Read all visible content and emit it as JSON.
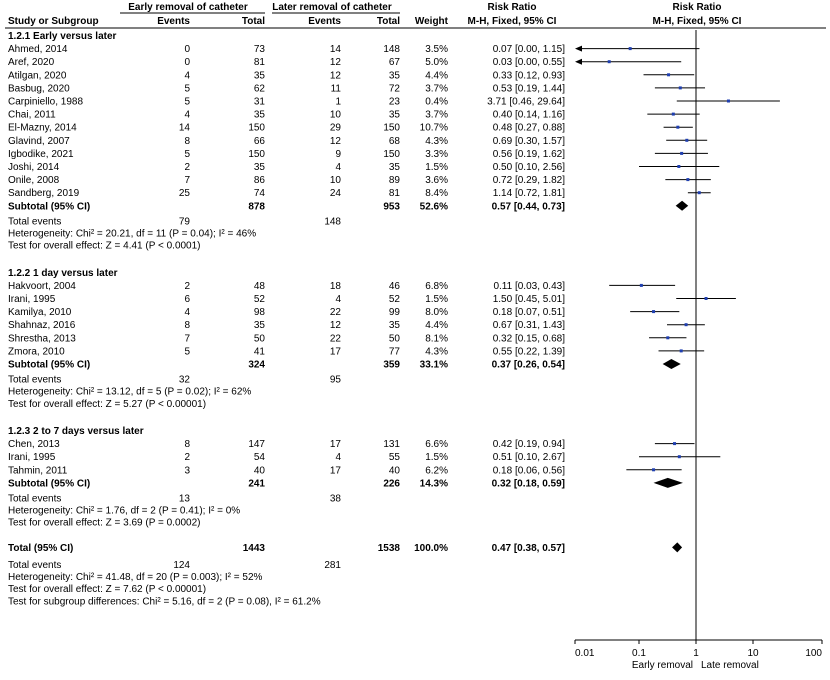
{
  "header": {
    "early_group": "Early removal of catheter",
    "late_group": "Later removal of catheter",
    "risk_ratio": "Risk Ratio",
    "risk_ratio_plot": "Risk Ratio",
    "study_col": "Study or Subgroup",
    "events_early": "Events",
    "total_early": "Total",
    "events_late": "Events",
    "total_late": "Total",
    "weight": "Weight",
    "method": "M-H, Fixed, 95% CI",
    "method_plot": "M-H, Fixed, 95% CI"
  },
  "chart_data": {
    "type": "forest",
    "scale": "log",
    "xlim": [
      0.01,
      100
    ],
    "ticks": [
      0.01,
      0.1,
      1,
      10,
      100
    ],
    "tick_labels": [
      "0.01",
      "0.1",
      "1",
      "10",
      "100"
    ],
    "axis_labels": {
      "left": "Early removal",
      "right": "Late removal"
    },
    "subgroups": [
      {
        "title": "1.2.1 Early versus later",
        "studies": [
          {
            "name": "Ahmed, 2014",
            "ee": "0",
            "et": "73",
            "le": "14",
            "lt": "148",
            "w": "3.5%",
            "ci_text": "0.07 [0.00, 1.15]",
            "rr": 0.07,
            "lo": 0.004,
            "hi": 1.15,
            "arrow_left": true
          },
          {
            "name": "Aref, 2020",
            "ee": "0",
            "et": "81",
            "le": "12",
            "lt": "67",
            "w": "5.0%",
            "ci_text": "0.03 [0.00, 0.55]",
            "rr": 0.03,
            "lo": 0.002,
            "hi": 0.55,
            "arrow_left": true
          },
          {
            "name": "Atilgan, 2020",
            "ee": "4",
            "et": "35",
            "le": "12",
            "lt": "35",
            "w": "4.4%",
            "ci_text": "0.33 [0.12, 0.93]",
            "rr": 0.33,
            "lo": 0.12,
            "hi": 0.93
          },
          {
            "name": "Basbug, 2020",
            "ee": "5",
            "et": "62",
            "le": "11",
            "lt": "72",
            "w": "3.7%",
            "ci_text": "0.53 [0.19, 1.44]",
            "rr": 0.53,
            "lo": 0.19,
            "hi": 1.44
          },
          {
            "name": "Carpiniello, 1988",
            "ee": "5",
            "et": "31",
            "le": "1",
            "lt": "23",
            "w": "0.4%",
            "ci_text": "3.71 [0.46, 29.64]",
            "rr": 3.71,
            "lo": 0.46,
            "hi": 29.64
          },
          {
            "name": "Chai, 2011",
            "ee": "4",
            "et": "35",
            "le": "10",
            "lt": "35",
            "w": "3.7%",
            "ci_text": "0.40 [0.14, 1.16]",
            "rr": 0.4,
            "lo": 0.14,
            "hi": 1.16
          },
          {
            "name": "El-Mazny, 2014",
            "ee": "14",
            "et": "150",
            "le": "29",
            "lt": "150",
            "w": "10.7%",
            "ci_text": "0.48 [0.27, 0.88]",
            "rr": 0.48,
            "lo": 0.27,
            "hi": 0.88
          },
          {
            "name": "Glavind, 2007",
            "ee": "8",
            "et": "66",
            "le": "12",
            "lt": "68",
            "w": "4.3%",
            "ci_text": "0.69 [0.30, 1.57]",
            "rr": 0.69,
            "lo": 0.3,
            "hi": 1.57
          },
          {
            "name": "Igbodike, 2021",
            "ee": "5",
            "et": "150",
            "le": "9",
            "lt": "150",
            "w": "3.3%",
            "ci_text": "0.56 [0.19, 1.62]",
            "rr": 0.56,
            "lo": 0.19,
            "hi": 1.62
          },
          {
            "name": "Joshi, 2014",
            "ee": "2",
            "et": "35",
            "le": "4",
            "lt": "35",
            "w": "1.5%",
            "ci_text": "0.50 [0.10, 2.56]",
            "rr": 0.5,
            "lo": 0.1,
            "hi": 2.56
          },
          {
            "name": "Onile, 2008",
            "ee": "7",
            "et": "86",
            "le": "10",
            "lt": "89",
            "w": "3.6%",
            "ci_text": "0.72 [0.29, 1.82]",
            "rr": 0.72,
            "lo": 0.29,
            "hi": 1.82
          },
          {
            "name": "Sandberg, 2019",
            "ee": "25",
            "et": "74",
            "le": "24",
            "lt": "81",
            "w": "8.4%",
            "ci_text": "1.14 [0.72, 1.81]",
            "rr": 1.14,
            "lo": 0.72,
            "hi": 1.81
          }
        ],
        "subtotal": {
          "label": "Subtotal (95% CI)",
          "et": "878",
          "lt": "953",
          "w": "52.6%",
          "ci_text": "0.57 [0.44, 0.73]",
          "rr": 0.57,
          "lo": 0.44,
          "hi": 0.73
        },
        "events_label": "Total events",
        "events_early": "79",
        "events_late": "148",
        "heterogeneity": "Heterogeneity: Chi² = 20.21, df = 11 (P = 0.04); I² = 46%",
        "overall": "Test for overall effect: Z = 4.41 (P < 0.0001)"
      },
      {
        "title": "1.2.2 1 day versus later",
        "studies": [
          {
            "name": "Hakvoort, 2004",
            "ee": "2",
            "et": "48",
            "le": "18",
            "lt": "46",
            "w": "6.8%",
            "ci_text": "0.11 [0.03, 0.43]",
            "rr": 0.11,
            "lo": 0.03,
            "hi": 0.43
          },
          {
            "name": "Irani, 1995",
            "ee": "6",
            "et": "52",
            "le": "4",
            "lt": "52",
            "w": "1.5%",
            "ci_text": "1.50 [0.45, 5.01]",
            "rr": 1.5,
            "lo": 0.45,
            "hi": 5.01
          },
          {
            "name": "Kamilya, 2010",
            "ee": "4",
            "et": "98",
            "le": "22",
            "lt": "99",
            "w": "8.0%",
            "ci_text": "0.18 [0.07, 0.51]",
            "rr": 0.18,
            "lo": 0.07,
            "hi": 0.51
          },
          {
            "name": "Shahnaz, 2016",
            "ee": "8",
            "et": "35",
            "le": "12",
            "lt": "35",
            "w": "4.4%",
            "ci_text": "0.67 [0.31, 1.43]",
            "rr": 0.67,
            "lo": 0.31,
            "hi": 1.43
          },
          {
            "name": "Shrestha, 2013",
            "ee": "7",
            "et": "50",
            "le": "22",
            "lt": "50",
            "w": "8.1%",
            "ci_text": "0.32 [0.15, 0.68]",
            "rr": 0.32,
            "lo": 0.15,
            "hi": 0.68
          },
          {
            "name": "Zmora, 2010",
            "ee": "5",
            "et": "41",
            "le": "17",
            "lt": "77",
            "w": "4.3%",
            "ci_text": "0.55 [0.22, 1.39]",
            "rr": 0.55,
            "lo": 0.22,
            "hi": 1.39
          }
        ],
        "subtotal": {
          "label": "Subtotal (95% CI)",
          "et": "324",
          "lt": "359",
          "w": "33.1%",
          "ci_text": "0.37 [0.26, 0.54]",
          "rr": 0.37,
          "lo": 0.26,
          "hi": 0.54
        },
        "events_label": "Total events",
        "events_early": "32",
        "events_late": "95",
        "heterogeneity": "Heterogeneity: Chi² = 13.12, df = 5 (P = 0.02); I² = 62%",
        "overall": "Test for overall effect: Z = 5.27 (P < 0.00001)"
      },
      {
        "title": "1.2.3 2 to 7 days versus later",
        "studies": [
          {
            "name": "Chen, 2013",
            "ee": "8",
            "et": "147",
            "le": "17",
            "lt": "131",
            "w": "6.6%",
            "ci_text": "0.42 [0.19, 0.94]",
            "rr": 0.42,
            "lo": 0.19,
            "hi": 0.94
          },
          {
            "name": "Irani, 1995",
            "ee": "2",
            "et": "54",
            "le": "4",
            "lt": "55",
            "w": "1.5%",
            "ci_text": "0.51 [0.10, 2.67]",
            "rr": 0.51,
            "lo": 0.1,
            "hi": 2.67
          },
          {
            "name": "Tahmin, 2011",
            "ee": "3",
            "et": "40",
            "le": "17",
            "lt": "40",
            "w": "6.2%",
            "ci_text": "0.18 [0.06, 0.56]",
            "rr": 0.18,
            "lo": 0.06,
            "hi": 0.56
          }
        ],
        "subtotal": {
          "label": "Subtotal (95% CI)",
          "et": "241",
          "lt": "226",
          "w": "14.3%",
          "ci_text": "0.32 [0.18, 0.59]",
          "rr": 0.32,
          "lo": 0.18,
          "hi": 0.59
        },
        "events_label": "Total events",
        "events_early": "13",
        "events_late": "38",
        "heterogeneity": "Heterogeneity: Chi² = 1.76, df = 2 (P = 0.41); I² = 0%",
        "overall": "Test for overall effect: Z = 3.69 (P = 0.0002)"
      }
    ],
    "total": {
      "label": "Total (95% CI)",
      "et": "1443",
      "lt": "1538",
      "w": "100.0%",
      "ci_text": "0.47 [0.38, 0.57]",
      "rr": 0.47,
      "lo": 0.38,
      "hi": 0.57
    },
    "total_events": {
      "label": "Total events",
      "early": "124",
      "late": "281"
    },
    "heterogeneity": "Heterogeneity: Chi² = 41.48, df = 20 (P = 0.003); I² = 52%",
    "overall": "Test for overall effect: Z = 7.62 (P < 0.00001)",
    "subgroup_diff": "Test for subgroup differences: Chi² = 5.16, df = 2 (P = 0.08), I² = 61.2%",
    "colors": {
      "square": "#1f3fb0",
      "line": "#000000",
      "diamond": "#000000"
    }
  }
}
